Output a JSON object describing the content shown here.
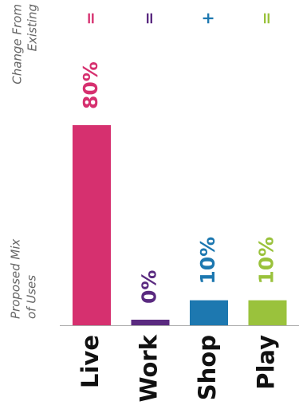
{
  "chart_data": {
    "type": "bar",
    "side_labels": {
      "change": [
        "Change From",
        "Existing"
      ],
      "mix": [
        "Proposed Mix",
        "of Uses"
      ]
    },
    "categories": [
      "Live",
      "Work",
      "Shop",
      "Play"
    ],
    "values": [
      80,
      0,
      10,
      10
    ],
    "value_labels": [
      "80%",
      "0%",
      "10%",
      "10%"
    ],
    "change": [
      "=",
      "=",
      "+",
      "="
    ],
    "colors": [
      "#d6306f",
      "#5a2a80",
      "#1d78b0",
      "#9ac23c"
    ],
    "ylim": [
      0,
      80
    ]
  }
}
